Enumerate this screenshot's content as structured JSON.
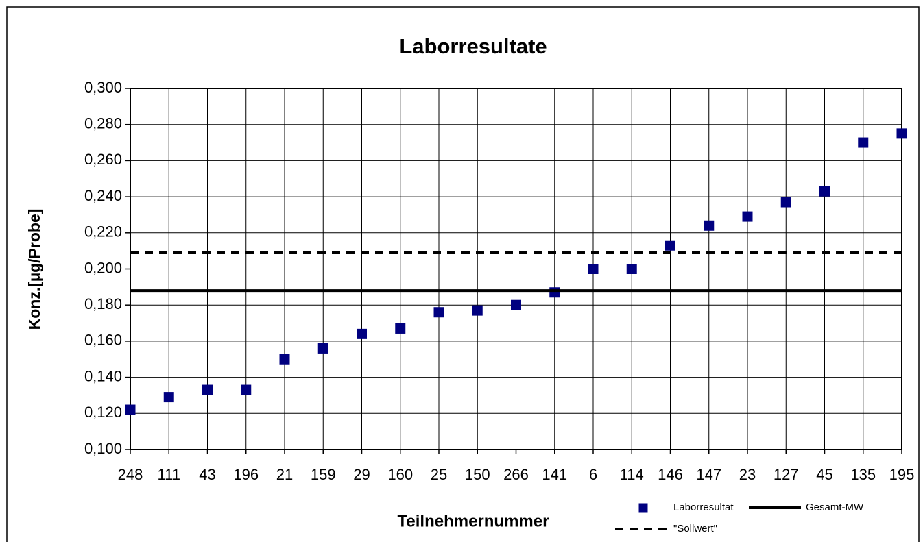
{
  "chart_data": {
    "type": "scatter",
    "title": "Laborresultate",
    "x_label": "Teilnehmernummer",
    "y_label": "Konz.[µg/Probe]",
    "categories": [
      "248",
      "111",
      "43",
      "196",
      "21",
      "159",
      "29",
      "160",
      "25",
      "150",
      "266",
      "141",
      "6",
      "114",
      "146",
      "147",
      "23",
      "127",
      "45",
      "135",
      "195"
    ],
    "series": [
      {
        "name": "Laborresultat",
        "color": "#000080",
        "style": "marker",
        "values": [
          0.122,
          0.129,
          0.133,
          0.133,
          0.15,
          0.156,
          0.164,
          0.167,
          0.176,
          0.177,
          0.18,
          0.187,
          0.2,
          0.2,
          0.213,
          0.224,
          0.229,
          0.237,
          0.243,
          0.27,
          0.275
        ]
      },
      {
        "name": "Gesamt-MW",
        "color": "#000000",
        "style": "solid",
        "values": [
          0.188,
          0.188,
          0.188,
          0.188,
          0.188,
          0.188,
          0.188,
          0.188,
          0.188,
          0.188,
          0.188,
          0.188,
          0.188,
          0.188,
          0.188,
          0.188,
          0.188,
          0.188,
          0.188,
          0.188,
          0.188
        ]
      },
      {
        "name": "\"Sollwert\"",
        "color": "#000000",
        "style": "dashed",
        "values": [
          0.209,
          0.209,
          0.209,
          0.209,
          0.209,
          0.209,
          0.209,
          0.209,
          0.209,
          0.209,
          0.209,
          0.209,
          0.209,
          0.209,
          0.209,
          0.209,
          0.209,
          0.209,
          0.209,
          0.209,
          0.209
        ]
      }
    ],
    "ylim": [
      0.1,
      0.3
    ],
    "yticks": [
      {
        "value": 0.1,
        "label": "0,100"
      },
      {
        "value": 0.12,
        "label": "0,120"
      },
      {
        "value": 0.14,
        "label": "0,140"
      },
      {
        "value": 0.16,
        "label": "0,160"
      },
      {
        "value": 0.18,
        "label": "0,180"
      },
      {
        "value": 0.2,
        "label": "0,200"
      },
      {
        "value": 0.22,
        "label": "0,220"
      },
      {
        "value": 0.24,
        "label": "0,240"
      },
      {
        "value": 0.26,
        "label": "0,260"
      },
      {
        "value": 0.28,
        "label": "0,280"
      },
      {
        "value": 0.3,
        "label": "0,300"
      }
    ],
    "grid": true
  }
}
